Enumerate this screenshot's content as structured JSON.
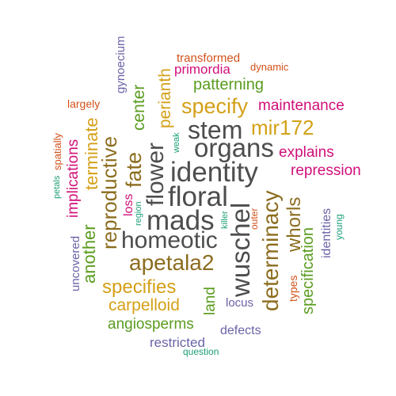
{
  "palette": {
    "dark_gray": "#4d4d4d",
    "brown": "#8c6d1f",
    "gold": "#d4a017",
    "green": "#5a9c1f",
    "magenta": "#d0107a",
    "orange_red": "#d2521b",
    "slate_purple": "#6a64a8",
    "teal": "#1b9e77"
  },
  "words": {
    "identity": "identity",
    "floral": "floral",
    "flower": "flower",
    "mads": "mads",
    "homeotic": "homeotic",
    "wuschel": "wuschel",
    "organs": "organs",
    "stem": "stem",
    "apetala2": "apetala2",
    "determinacy": "determinacy",
    "fate": "fate",
    "reproductive": "reproductive",
    "mir172": "mir172",
    "specify": "specify",
    "specifies": "specifies",
    "whorls": "whorls",
    "carpelloid": "carpelloid",
    "patterning": "patterning",
    "perianth": "perianth",
    "center": "center",
    "terminate": "terminate",
    "another": "another",
    "angiosperms": "angiosperms",
    "specification": "specification",
    "land": "land",
    "maintenance": "maintenance",
    "explains": "explains",
    "repression": "repression",
    "primordia": "primordia",
    "implications": "implications",
    "transformed": "transformed",
    "dynamic": "dynamic",
    "largely": "largely",
    "gynoecium": "gynoecium",
    "spatially": "spatially",
    "petals": "petals",
    "uncovered": "uncovered",
    "loss": "loss",
    "region": "region",
    "weak": "weak",
    "killer": "killer",
    "outer": "outer",
    "types": "types",
    "identities": "identities",
    "young": "young",
    "locus": "locus",
    "defects": "defects",
    "restricted": "restricted",
    "question": "question"
  }
}
